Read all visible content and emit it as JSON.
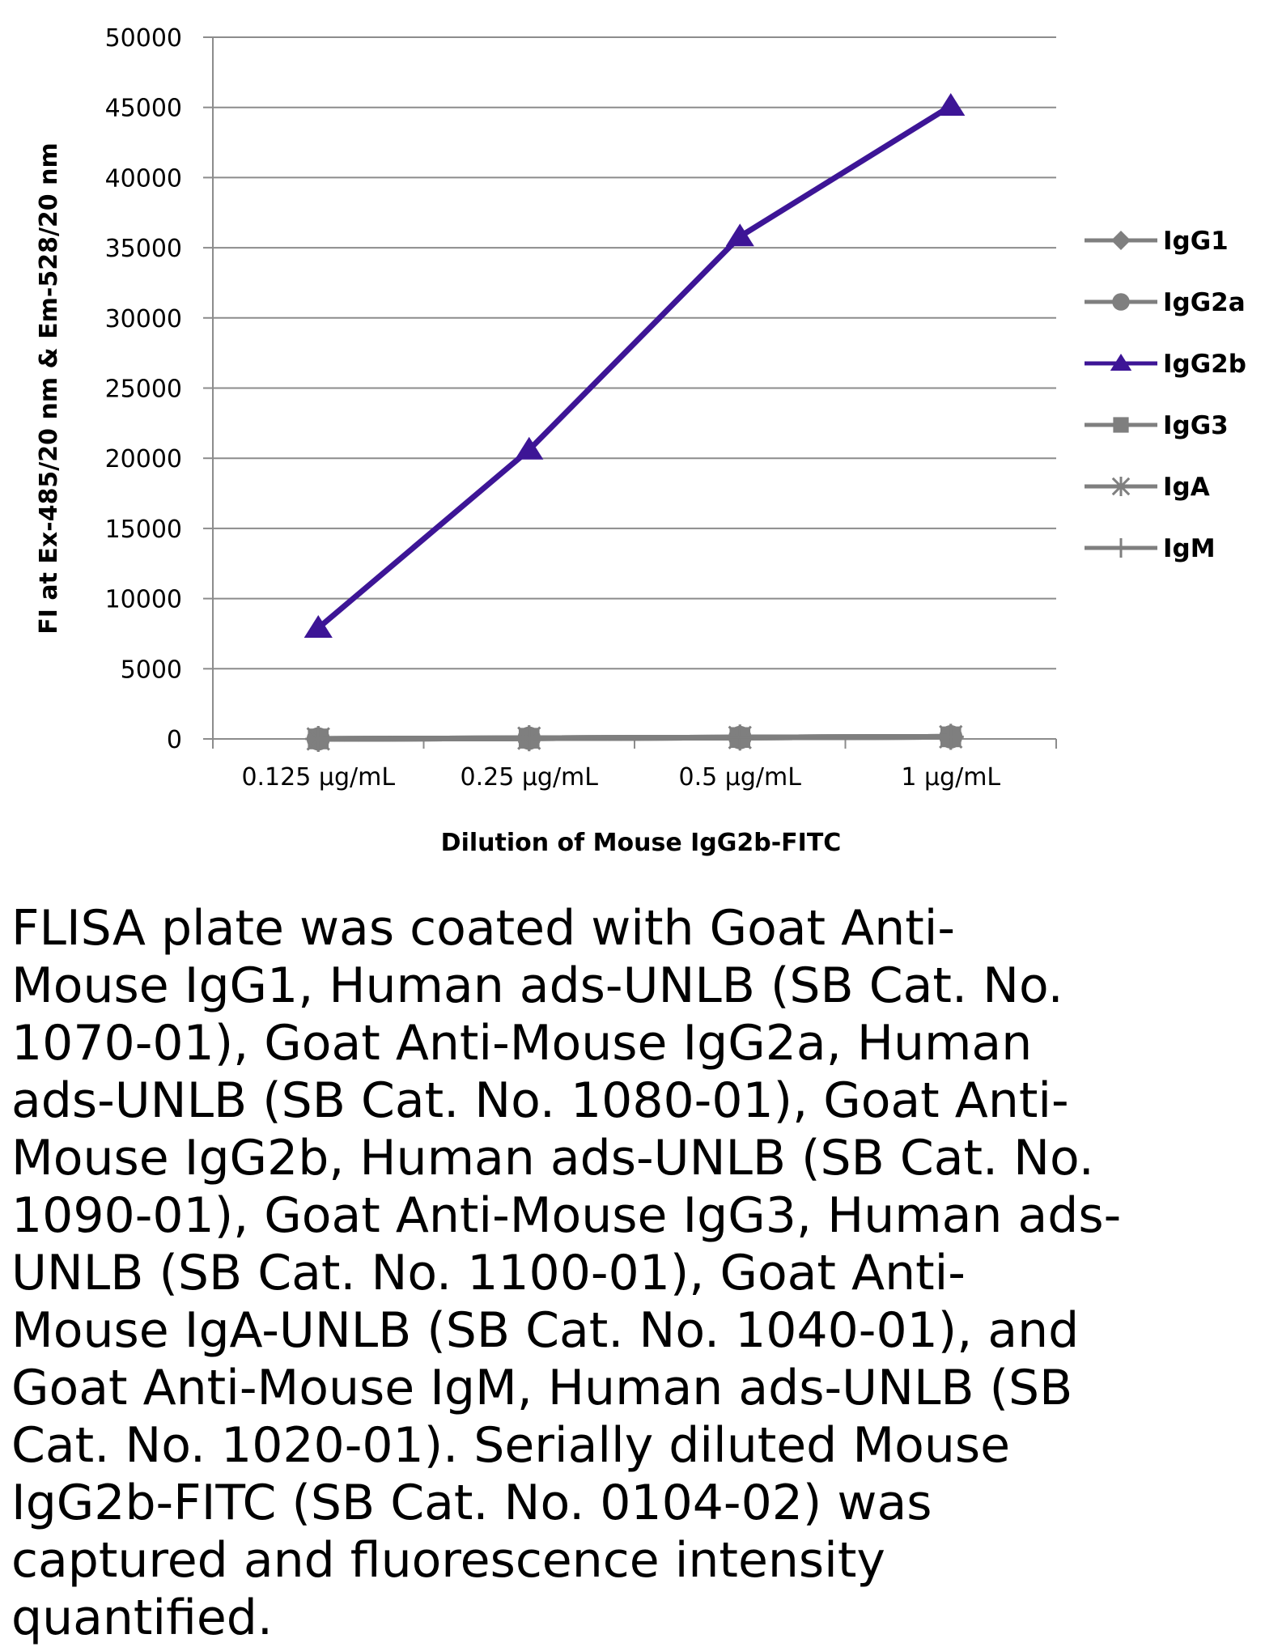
{
  "chart_data": {
    "type": "line",
    "categories": [
      "0.125 µg/mL",
      "0.25 µg/mL",
      "0.5 µg/mL",
      "1 µg/mL"
    ],
    "series": [
      {
        "name": "IgG1",
        "values": [
          0,
          50,
          100,
          150
        ],
        "color": "#7f7f7f",
        "marker": "diamond"
      },
      {
        "name": "IgG2a",
        "values": [
          0,
          50,
          100,
          150
        ],
        "color": "#7f7f7f",
        "marker": "circle"
      },
      {
        "name": "IgG2b",
        "values": [
          7900,
          20600,
          35800,
          45100
        ],
        "color": "#3d1596",
        "marker": "triangle"
      },
      {
        "name": "IgG3",
        "values": [
          0,
          50,
          100,
          150
        ],
        "color": "#7f7f7f",
        "marker": "square"
      },
      {
        "name": "IgA",
        "values": [
          0,
          50,
          100,
          150
        ],
        "color": "#7f7f7f",
        "marker": "asterisk"
      },
      {
        "name": "IgM",
        "values": [
          0,
          50,
          100,
          150
        ],
        "color": "#7f7f7f",
        "marker": "plus"
      }
    ],
    "title": "",
    "xlabel": "Dilution of Mouse IgG2b-FITC",
    "ylabel": "FI at Ex-485/20 nm & Em-528/20 nm",
    "ylim": [
      0,
      50000
    ],
    "yticks": [
      "0",
      "5000",
      "10000",
      "15000",
      "20000",
      "25000",
      "30000",
      "35000",
      "40000",
      "45000",
      "50000"
    ],
    "grid": true,
    "legend_position": "right"
  },
  "caption": "FLISA plate was coated with Goat Anti-\nMouse IgG1, Human ads-UNLB (SB Cat. No.\n1070-01), Goat Anti-Mouse IgG2a, Human\nads-UNLB (SB Cat. No. 1080-01), Goat Anti-\nMouse IgG2b, Human ads-UNLB (SB Cat. No.\n1090-01), Goat Anti-Mouse IgG3, Human ads-\nUNLB (SB Cat. No. 1100-01), Goat Anti-\nMouse IgA-UNLB (SB Cat. No. 1040-01), and\nGoat Anti-Mouse IgM, Human ads-UNLB (SB\nCat. No. 1020-01).  Serially diluted Mouse\nIgG2b-FITC (SB Cat. No. 0104-02) was\ncaptured and fluorescence intensity\nquantified."
}
